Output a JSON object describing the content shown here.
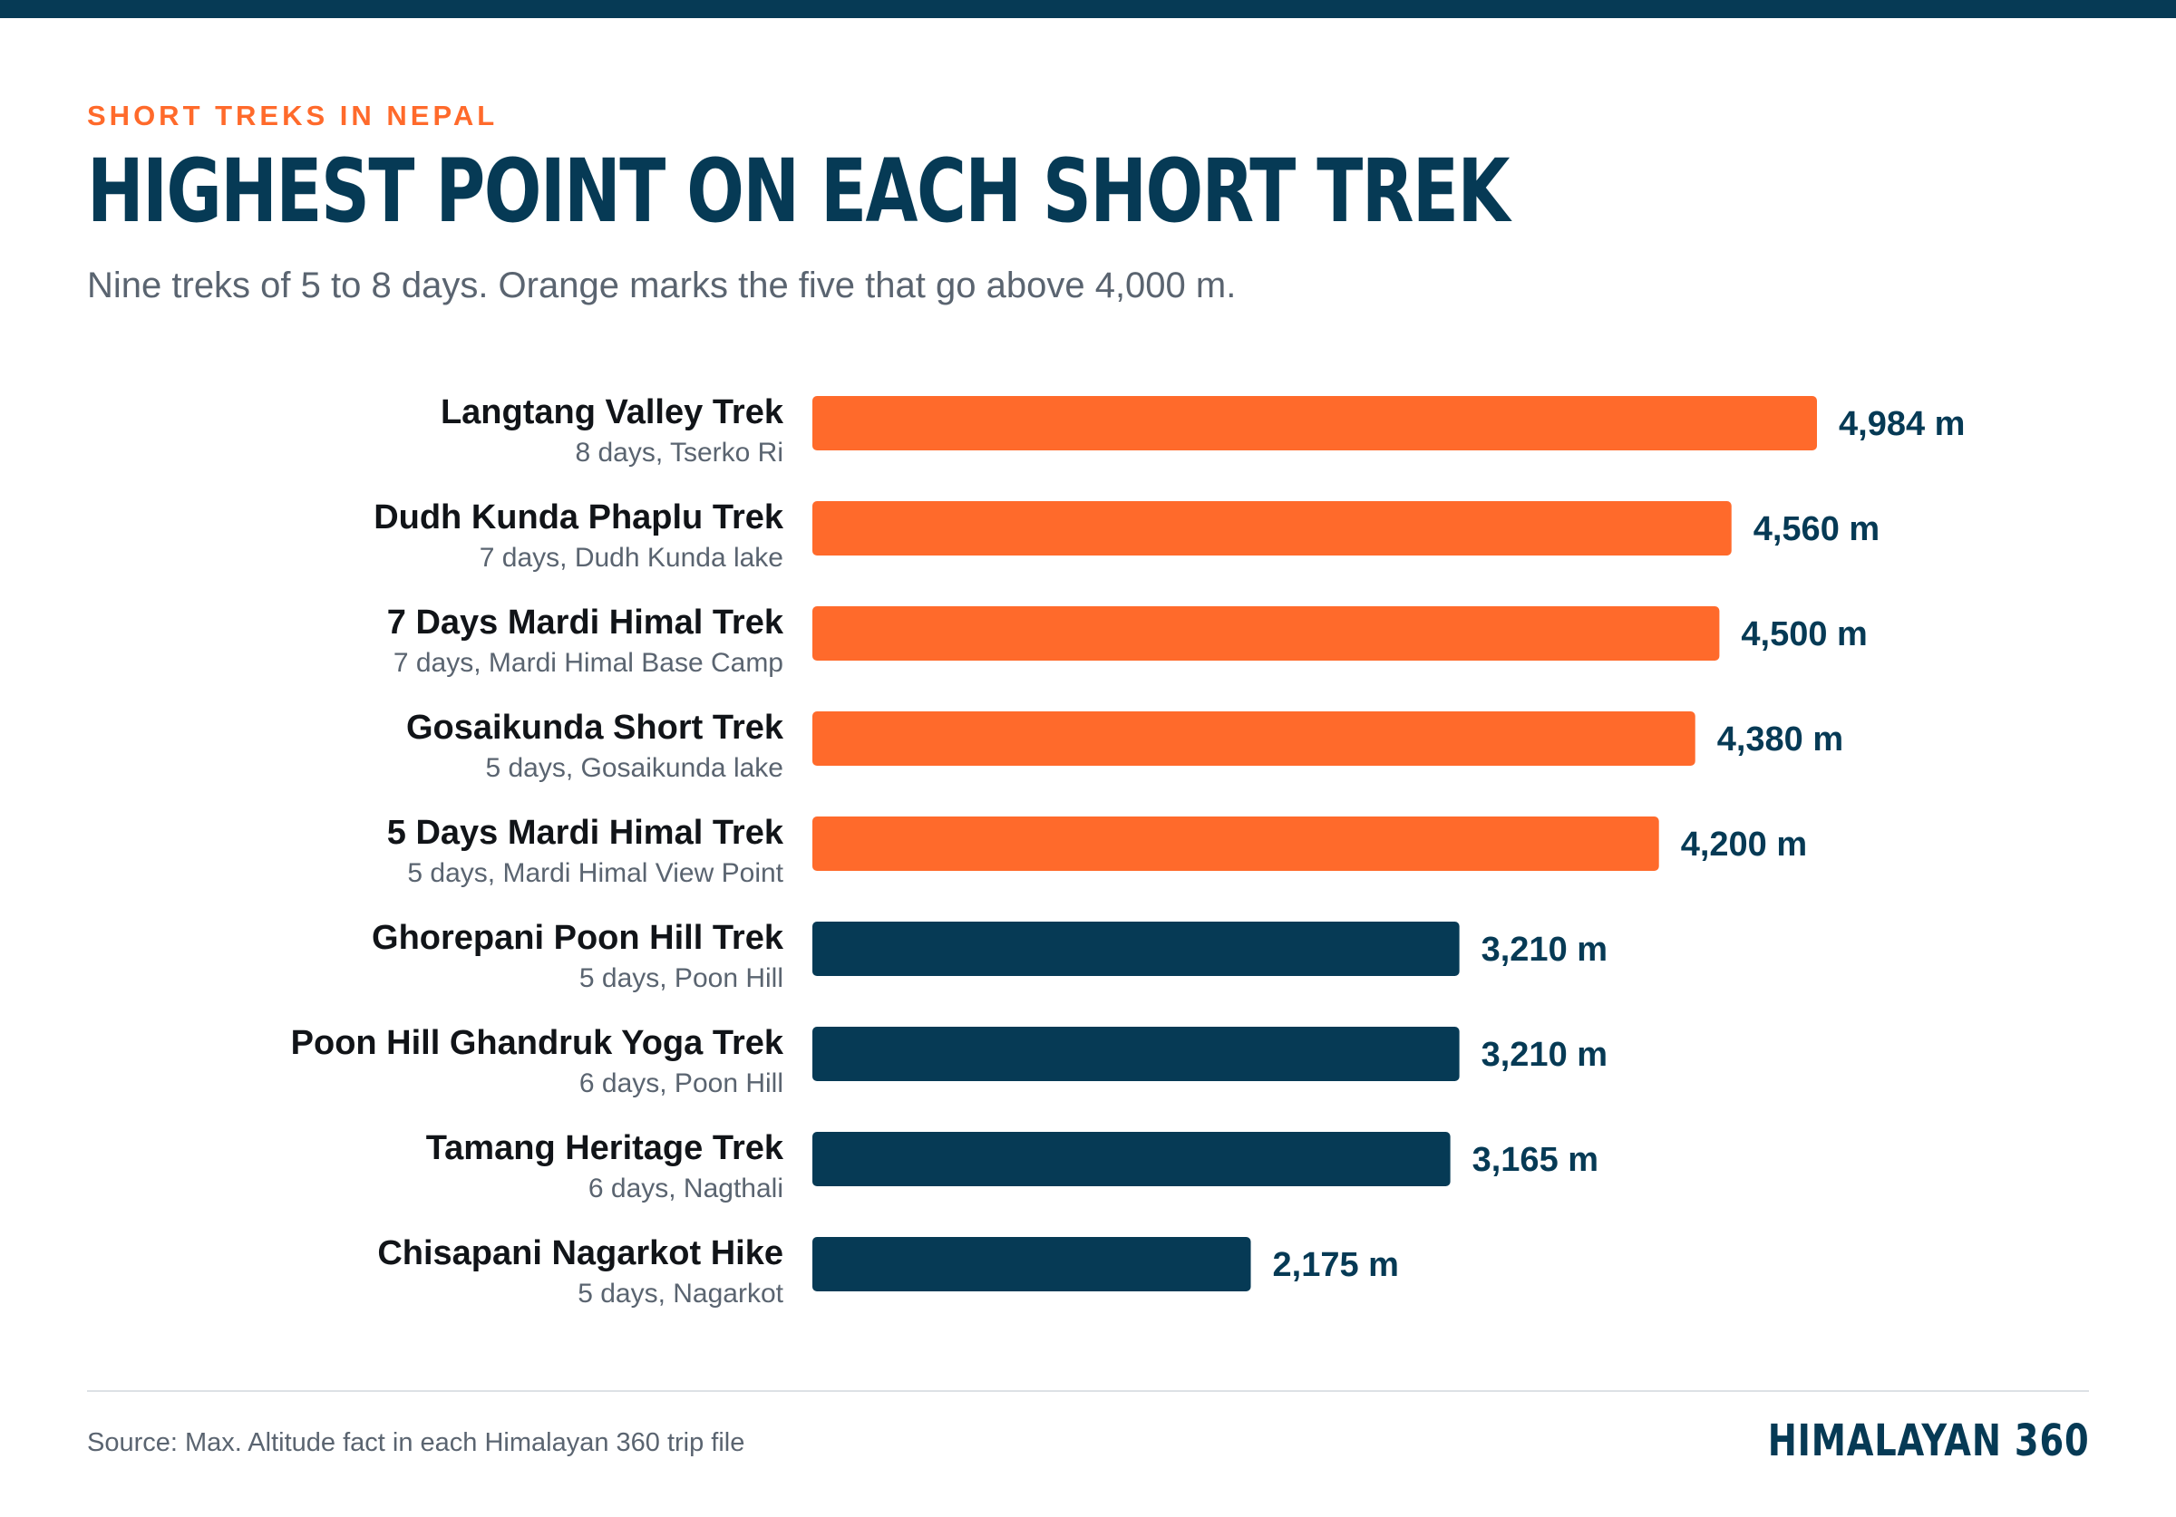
{
  "header": {
    "eyebrow": "SHORT TREKS IN NEPAL",
    "title": "HIGHEST POINT ON EACH SHORT TREK",
    "subtitle": "Nine treks of 5 to 8 days. Orange marks the five that go above 4,000 m."
  },
  "footer": {
    "source": "Source: Max. Altitude fact in each Himalayan 360 trip file",
    "brand": "HIMALAYAN 360"
  },
  "colors": {
    "accent": "#ff6a2b",
    "primary": "#063a55",
    "label": "#111418",
    "muted": "#5a6470"
  },
  "chart_data": {
    "type": "bar",
    "orientation": "horizontal",
    "unit": "m",
    "highlight_threshold": 4000,
    "categories": [
      "Langtang Valley Trek",
      "Dudh Kunda Phaplu Trek",
      "7 Days Mardi Himal Trek",
      "Gosaikunda Short Trek",
      "5 Days Mardi Himal Trek",
      "Ghorepani Poon Hill Trek",
      "Poon Hill Ghandruk Yoga Trek",
      "Tamang Heritage Trek",
      "Chisapani Nagarkot Hike"
    ],
    "sublabels": [
      "8 days, Tserko Ri",
      "7 days, Dudh Kunda lake",
      "7 days, Mardi Himal Base Camp",
      "5 days, Gosaikunda lake",
      "5 days, Mardi Himal View Point",
      "5 days, Poon Hill",
      "6 days, Poon Hill",
      "6 days, Nagthali",
      "5 days, Nagarkot"
    ],
    "values": [
      4984,
      4560,
      4500,
      4380,
      4200,
      3210,
      3210,
      3165,
      2175
    ],
    "value_labels": [
      "4,984 m",
      "4,560 m",
      "4,500 m",
      "4,380 m",
      "4,200 m",
      "3,210 m",
      "3,210 m",
      "3,165 m",
      "2,175 m"
    ],
    "xlim": [
      0,
      4984
    ],
    "grid": false,
    "legend": "none"
  }
}
